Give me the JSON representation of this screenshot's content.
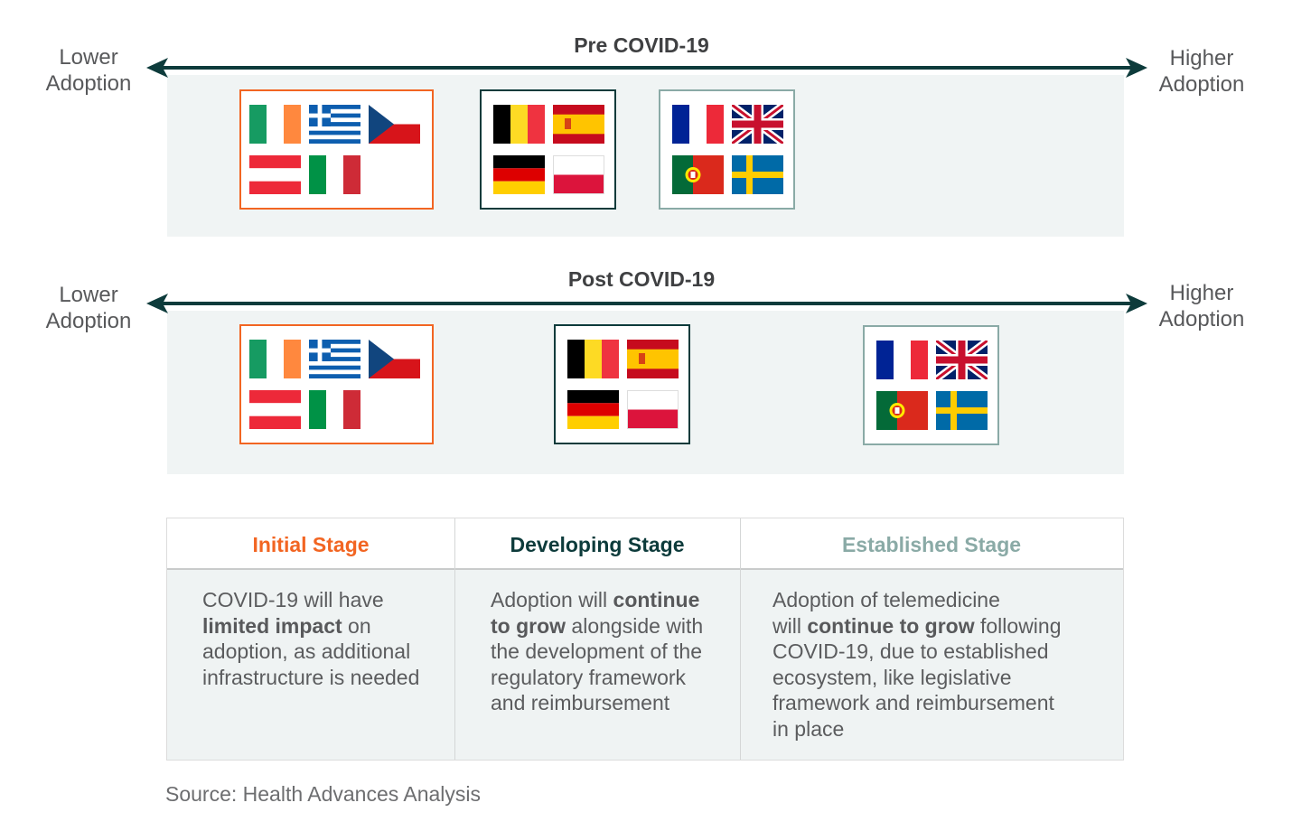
{
  "axis": {
    "lower_label_line1": "Lower",
    "lower_label_line2": "Adoption",
    "higher_label_line1": "Higher",
    "higher_label_line2": "Adoption"
  },
  "bands": [
    {
      "title": "Pre COVID-19",
      "groups": [
        {
          "stage": "Initial Stage",
          "border_color": "#f26522",
          "flags": [
            "ireland-flag",
            "greece-flag",
            "czech-republic-flag",
            "austria-flag",
            "italy-flag"
          ]
        },
        {
          "stage": "Developing Stage",
          "border_color": "#0d3b3b",
          "flags": [
            "belgium-flag",
            "spain-flag",
            "germany-flag",
            "poland-flag"
          ]
        },
        {
          "stage": "Established Stage",
          "border_color": "#8aaaa6",
          "flags": [
            "france-flag",
            "united-kingdom-flag",
            "portugal-flag",
            "sweden-flag"
          ]
        }
      ]
    },
    {
      "title": "Post COVID-19",
      "groups": [
        {
          "stage": "Initial Stage",
          "border_color": "#f26522",
          "flags": [
            "ireland-flag",
            "greece-flag",
            "czech-republic-flag",
            "austria-flag",
            "italy-flag"
          ]
        },
        {
          "stage": "Developing Stage",
          "border_color": "#0d3b3b",
          "flags": [
            "belgium-flag",
            "spain-flag",
            "germany-flag",
            "poland-flag"
          ]
        },
        {
          "stage": "Established Stage",
          "border_color": "#8aaaa6",
          "flags": [
            "france-flag",
            "united-kingdom-flag",
            "portugal-flag",
            "sweden-flag"
          ]
        }
      ]
    }
  ],
  "colors": {
    "initial": "#f26522",
    "developing": "#0d3b3b",
    "established": "#8aaaa6",
    "arrow": "#0d3b3b",
    "band_background": "#f0f4f4"
  },
  "legend": {
    "headers": [
      "Initial Stage",
      "Developing Stage",
      "Established Stage"
    ],
    "initial": {
      "t1": "COVID-19 will have",
      "b1": "limited impact",
      "t2": " on",
      "t3": "adoption, as additional",
      "t4": "infrastructure is needed"
    },
    "developing": {
      "t1": "Adoption will ",
      "b1": "continue",
      "b2": "to grow",
      "t2": " alongside with",
      "t3": "the development of the",
      "t4": "regulatory framework",
      "t5": "and reimbursement"
    },
    "established": {
      "t1": "Adoption of telemedicine",
      "t2": "will ",
      "b1": "continue to grow",
      "t3": " following",
      "t4": "COVID-19, due to established",
      "t5": "ecosystem, like legislative",
      "t6": "framework and reimbursement",
      "t7": "in place"
    }
  },
  "source": "Source: Health Advances Analysis"
}
